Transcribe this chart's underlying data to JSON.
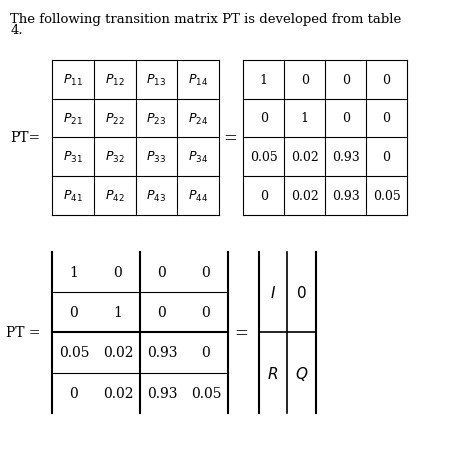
{
  "title_line1": "The following transition matrix PT is developed from table",
  "title_line2": "4.",
  "pt_label_top": "PT=",
  "pt_label_bottom": "PT =",
  "symbolic_matrix": [
    [
      "P_{11}",
      "P_{12}",
      "P_{13}",
      "P_{14}"
    ],
    [
      "P_{21}",
      "P_{22}",
      "P_{23}",
      "P_{24}"
    ],
    [
      "P_{31}",
      "P_{32}",
      "P_{33}",
      "P_{34}"
    ],
    [
      "P_{41}",
      "P_{42}",
      "P_{43}",
      "P_{44}"
    ]
  ],
  "numeric_matrix_top": [
    [
      "1",
      "0",
      "0",
      "0"
    ],
    [
      "0",
      "1",
      "0",
      "0"
    ],
    [
      "0.05",
      "0.02",
      "0.93",
      "0"
    ],
    [
      "0",
      "0.02",
      "0.93",
      "0.05"
    ]
  ],
  "bottom_matrix": [
    [
      "1",
      "0",
      "0",
      "0"
    ],
    [
      "0",
      "1",
      "0",
      "0"
    ],
    [
      "0.05",
      "0.02",
      "0.93",
      "0"
    ],
    [
      "0",
      "0.02",
      "0.93",
      "0.05"
    ]
  ],
  "iq_matrix": [
    [
      "I",
      "0"
    ],
    [
      "R",
      "Q"
    ]
  ],
  "bg_color": "#ffffff",
  "text_color": "#000000"
}
